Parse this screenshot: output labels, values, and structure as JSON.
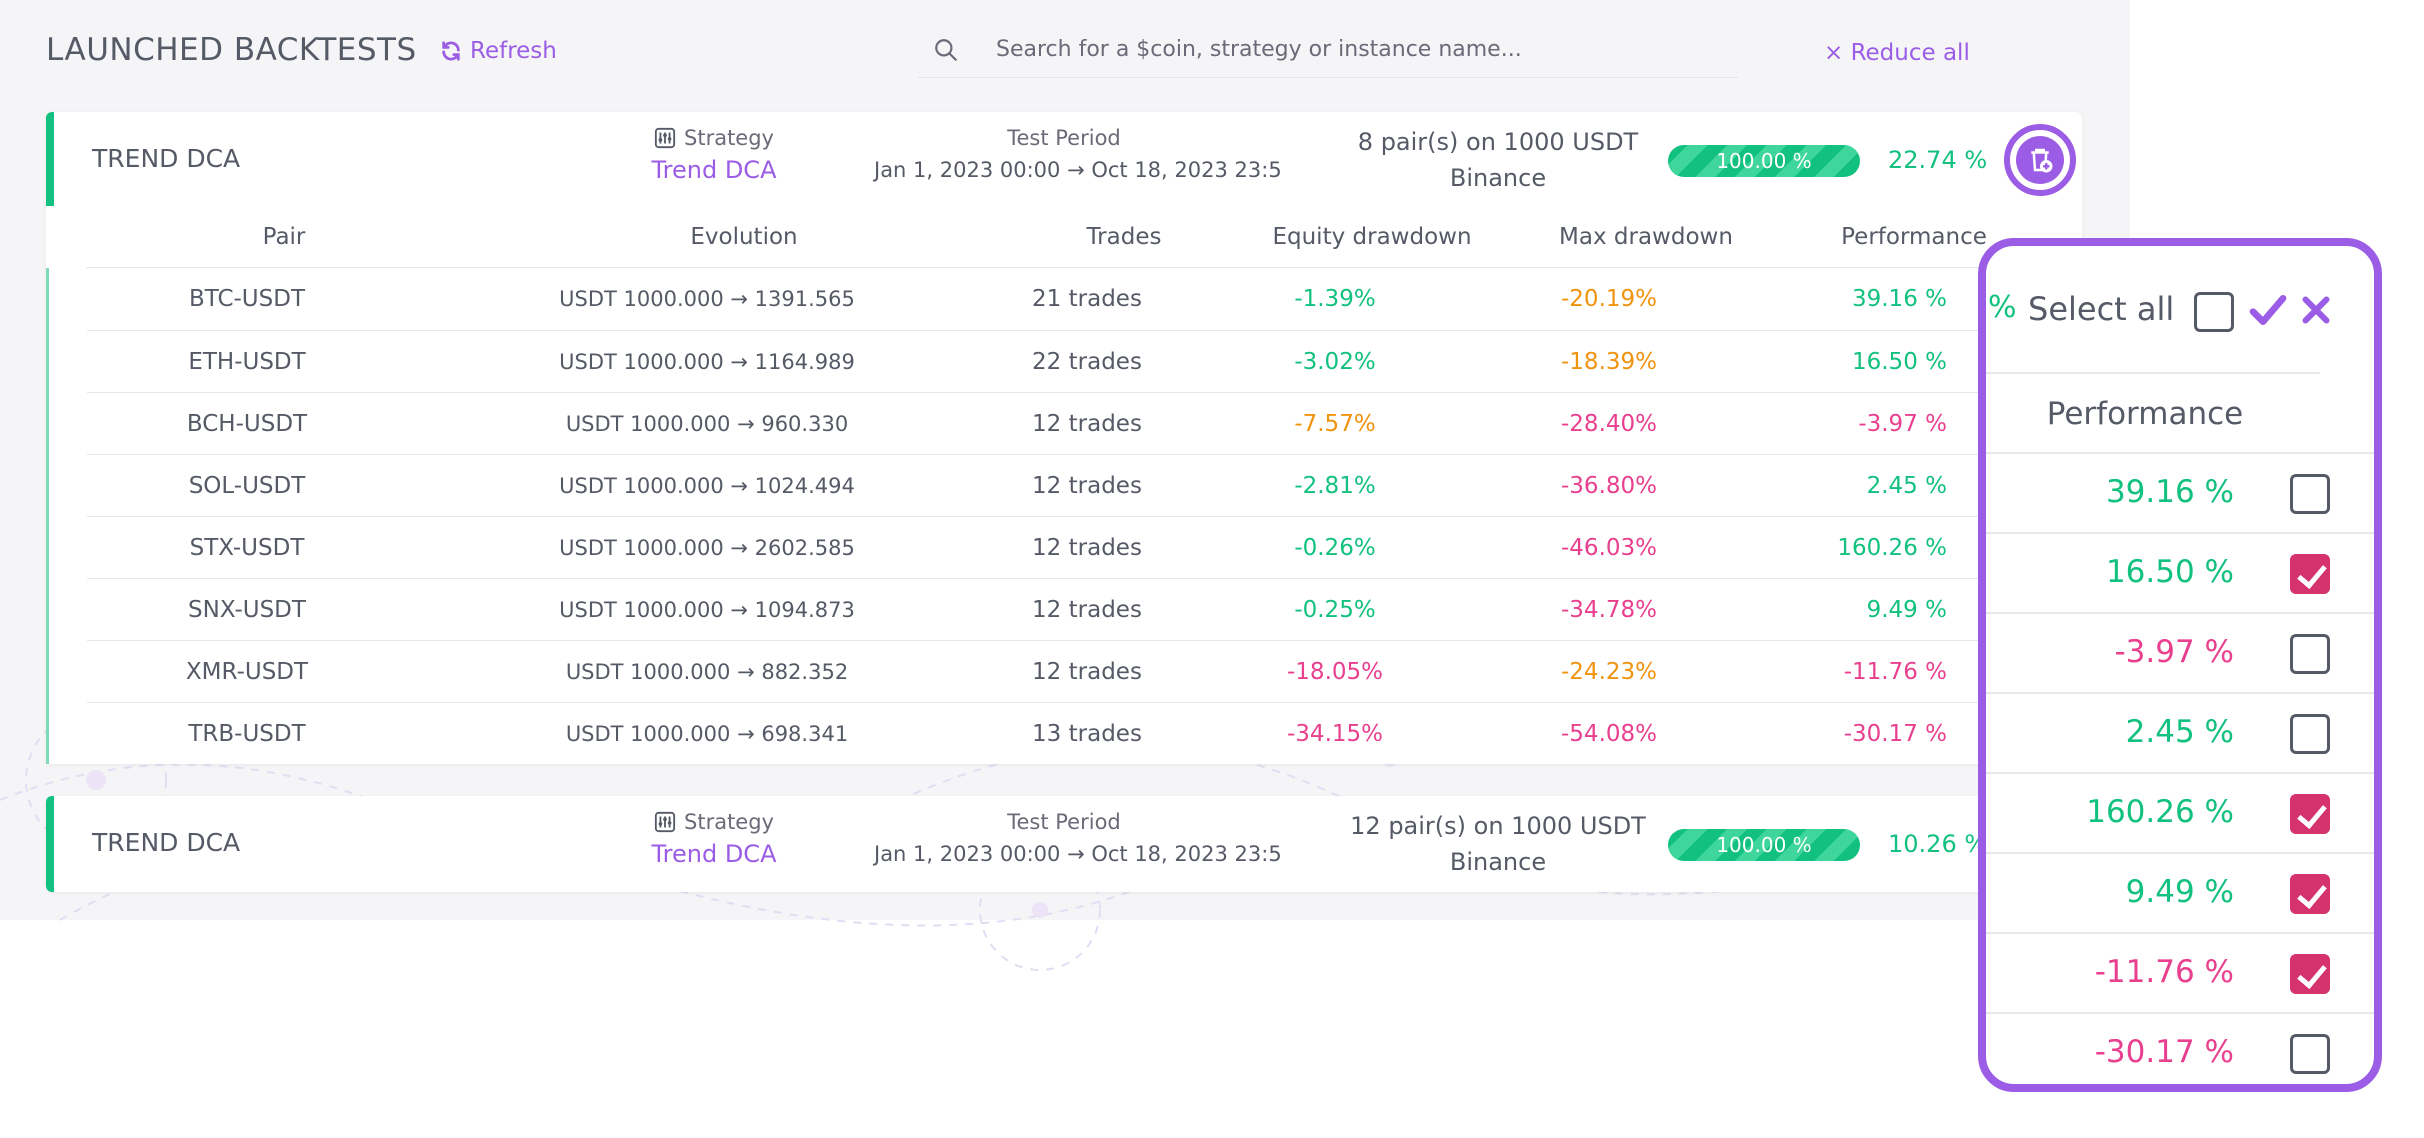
{
  "header": {
    "title": "LAUNCHED BACKTESTS",
    "refresh_label": "Refresh",
    "search_placeholder": "Search for a $coin, strategy or instance name...",
    "reduce_all_label": "× Reduce all"
  },
  "colors": {
    "accent": "#9b5de5",
    "positive": "#12c07f",
    "negative": "#e8408e",
    "warning": "#f0930f"
  },
  "backtests": [
    {
      "name": "TREND DCA",
      "strategy_label": "Strategy",
      "strategy_value": "Trend DCA",
      "period_label": "Test Period",
      "period_value": "Jan 1, 2023 00:00 → Oct 18, 2023 23:5",
      "pairs_summary": "8 pair(s) on 1000 USDT",
      "exchange": "Binance",
      "progress_label": "100.00 %",
      "progress_fraction": 1.0,
      "performance": "22.74 %",
      "table": {
        "headers": [
          "Pair",
          "Evolution",
          "Trades",
          "Equity drawdown",
          "Max drawdown",
          "Performance"
        ],
        "rows": [
          {
            "pair": "BTC-USDT",
            "evolution": "USDT 1000.000 → 1391.565",
            "trades": "21 trades",
            "eq": "-1.39%",
            "eq_tone": "pos",
            "max": "-20.19%",
            "max_tone": "warn",
            "perf": "39.16 %",
            "perf_tone": "pos"
          },
          {
            "pair": "ETH-USDT",
            "evolution": "USDT 1000.000 → 1164.989",
            "trades": "22 trades",
            "eq": "-3.02%",
            "eq_tone": "pos",
            "max": "-18.39%",
            "max_tone": "warn",
            "perf": "16.50 %",
            "perf_tone": "pos"
          },
          {
            "pair": "BCH-USDT",
            "evolution": "USDT 1000.000 → 960.330",
            "trades": "12 trades",
            "eq": "-7.57%",
            "eq_tone": "warn",
            "max": "-28.40%",
            "max_tone": "neg",
            "perf": "-3.97 %",
            "perf_tone": "neg"
          },
          {
            "pair": "SOL-USDT",
            "evolution": "USDT 1000.000 → 1024.494",
            "trades": "12 trades",
            "eq": "-2.81%",
            "eq_tone": "pos",
            "max": "-36.80%",
            "max_tone": "neg",
            "perf": "2.45 %",
            "perf_tone": "pos"
          },
          {
            "pair": "STX-USDT",
            "evolution": "USDT 1000.000 → 2602.585",
            "trades": "12 trades",
            "eq": "-0.26%",
            "eq_tone": "pos",
            "max": "-46.03%",
            "max_tone": "neg",
            "perf": "160.26 %",
            "perf_tone": "pos"
          },
          {
            "pair": "SNX-USDT",
            "evolution": "USDT 1000.000 → 1094.873",
            "trades": "12 trades",
            "eq": "-0.25%",
            "eq_tone": "pos",
            "max": "-34.78%",
            "max_tone": "neg",
            "perf": "9.49 %",
            "perf_tone": "pos"
          },
          {
            "pair": "XMR-USDT",
            "evolution": "USDT 1000.000 → 882.352",
            "trades": "12 trades",
            "eq": "-18.05%",
            "eq_tone": "neg",
            "max": "-24.23%",
            "max_tone": "warn",
            "perf": "-11.76 %",
            "perf_tone": "neg"
          },
          {
            "pair": "TRB-USDT",
            "evolution": "USDT 1000.000 → 698.341",
            "trades": "13 trades",
            "eq": "-34.15%",
            "eq_tone": "neg",
            "max": "-54.08%",
            "max_tone": "neg",
            "perf": "-30.17 %",
            "perf_tone": "neg"
          }
        ]
      }
    },
    {
      "name": "TREND DCA",
      "strategy_label": "Strategy",
      "strategy_value": "Trend DCA",
      "period_label": "Test Period",
      "period_value": "Jan 1, 2023 00:00 → Oct 18, 2023 23:5",
      "pairs_summary": "12 pair(s) on 1000 USDT",
      "exchange": "Binance",
      "progress_label": "100.00 %",
      "progress_fraction": 1.0,
      "performance": "10.26 %"
    }
  ],
  "selection_popup": {
    "edge_percent": "%",
    "select_all_label": "Select all",
    "select_all_checked": false,
    "header": "Performance",
    "rows": [
      {
        "value": "39.16 %",
        "tone": "pos",
        "checked": false
      },
      {
        "value": "16.50 %",
        "tone": "pos",
        "checked": true
      },
      {
        "value": "-3.97 %",
        "tone": "neg",
        "checked": false
      },
      {
        "value": "2.45 %",
        "tone": "pos",
        "checked": false
      },
      {
        "value": "160.26 %",
        "tone": "pos",
        "checked": true
      },
      {
        "value": "9.49 %",
        "tone": "pos",
        "checked": true
      },
      {
        "value": "-11.76 %",
        "tone": "neg",
        "checked": true
      },
      {
        "value": "-30.17 %",
        "tone": "neg",
        "checked": false
      }
    ]
  }
}
